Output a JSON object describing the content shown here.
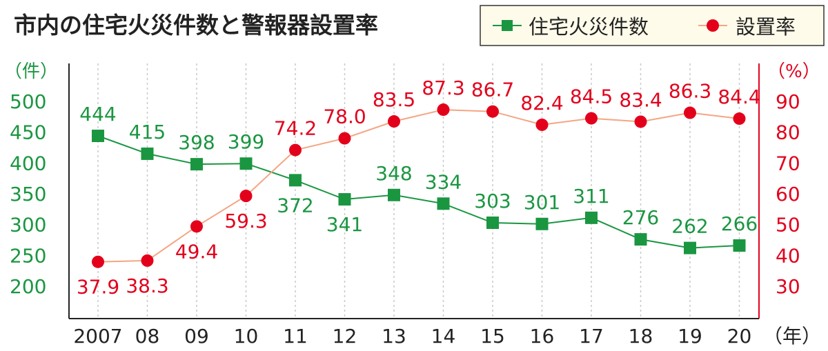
{
  "chart_data": {
    "type": "line",
    "title": "市内の住宅火災件数と警報器設置率",
    "categories": [
      "2007",
      "08",
      "09",
      "10",
      "11",
      "12",
      "13",
      "14",
      "15",
      "16",
      "17",
      "18",
      "19",
      "20"
    ],
    "x_unit": "（年）",
    "left_axis": {
      "unit": "（件）",
      "ticks": [
        500,
        450,
        400,
        350,
        300,
        250,
        200
      ],
      "range": [
        200,
        500
      ],
      "color": "#1a9641"
    },
    "right_axis": {
      "unit": "（%）",
      "ticks": [
        90,
        80,
        70,
        60,
        50,
        40,
        30
      ],
      "range": [
        30,
        90
      ],
      "color": "#e3001b"
    },
    "series": [
      {
        "name": "住宅火災件数",
        "axis": "left",
        "marker": "square",
        "color": "#1a9641",
        "line_color": "#1a9641",
        "values": [
          444,
          415,
          398,
          399,
          372,
          341,
          348,
          334,
          303,
          301,
          311,
          276,
          262,
          266
        ],
        "labels": [
          "444",
          "415",
          "398",
          "399",
          "372",
          "341",
          "348",
          "334",
          "303",
          "301",
          "311",
          "276",
          "262",
          "266"
        ],
        "label_side": [
          "above",
          "above",
          "above",
          "above",
          "below",
          "below",
          "above",
          "above",
          "above",
          "above",
          "above",
          "above",
          "above",
          "above"
        ]
      },
      {
        "name": "設置率",
        "axis": "right",
        "marker": "circle",
        "color": "#e3001b",
        "line_color": "#f4a582",
        "values": [
          37.9,
          38.3,
          49.4,
          59.3,
          74.2,
          78.0,
          83.5,
          87.3,
          86.7,
          82.4,
          84.5,
          83.4,
          86.3,
          84.4
        ],
        "labels": [
          "37.9",
          "38.3",
          "49.4",
          "59.3",
          "74.2",
          "78.0",
          "83.5",
          "87.3",
          "86.7",
          "82.4",
          "84.5",
          "83.4",
          "86.3",
          "84.4"
        ],
        "label_side": [
          "below",
          "below",
          "below",
          "below",
          "above",
          "above",
          "above",
          "above",
          "above",
          "above",
          "above",
          "above",
          "above",
          "above"
        ]
      }
    ],
    "grid": "vertical-dashed",
    "legend_position": "top-right"
  }
}
